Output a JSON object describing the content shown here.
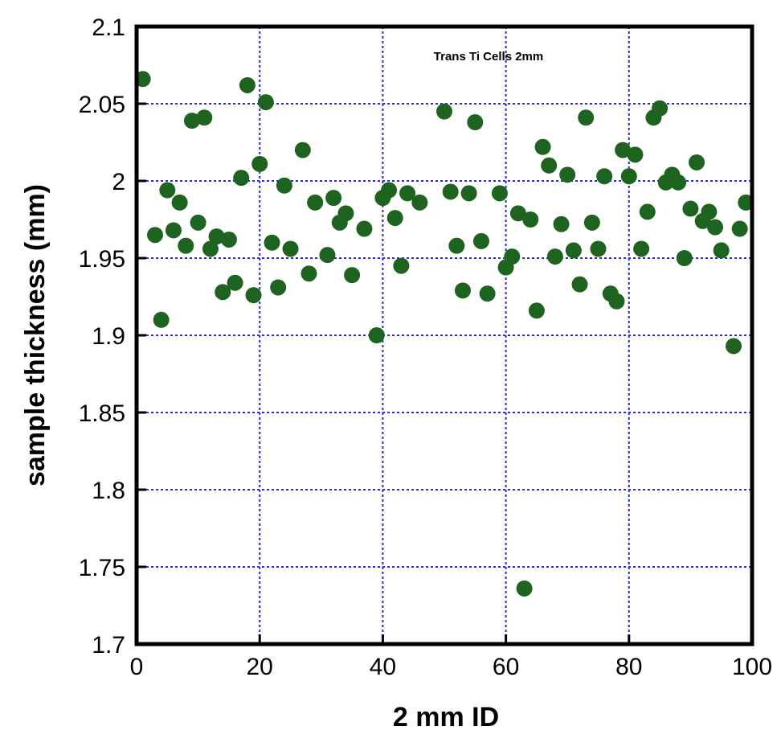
{
  "chart_data": {
    "type": "scatter",
    "title": "Trans  Ti Cells 2mm",
    "xlabel": "2 mm ID",
    "ylabel": "sample thickness (mm)",
    "xlim": [
      0,
      100
    ],
    "ylim": [
      1.7,
      2.1
    ],
    "x_ticks": [
      "0",
      "20",
      "40",
      "60",
      "80",
      "100"
    ],
    "y_ticks": [
      "1.7",
      "1.75",
      "1.8",
      "1.85",
      "1.9",
      "1.95",
      "2",
      "2.05",
      "2.1"
    ],
    "grid": true,
    "colors": {
      "marker": "#1e6420",
      "grid": "#2b2bd6",
      "axis": "#000000"
    },
    "points": [
      {
        "x": 1,
        "y": 2.066
      },
      {
        "x": 3,
        "y": 1.965
      },
      {
        "x": 4,
        "y": 1.91
      },
      {
        "x": 5,
        "y": 1.994
      },
      {
        "x": 6,
        "y": 1.968
      },
      {
        "x": 7,
        "y": 1.986
      },
      {
        "x": 8,
        "y": 1.958
      },
      {
        "x": 9,
        "y": 2.039
      },
      {
        "x": 10,
        "y": 1.973
      },
      {
        "x": 11,
        "y": 2.041
      },
      {
        "x": 12,
        "y": 1.956
      },
      {
        "x": 13,
        "y": 1.964
      },
      {
        "x": 14,
        "y": 1.928
      },
      {
        "x": 15,
        "y": 1.962
      },
      {
        "x": 16,
        "y": 1.934
      },
      {
        "x": 17,
        "y": 2.002
      },
      {
        "x": 18,
        "y": 2.062
      },
      {
        "x": 19,
        "y": 1.926
      },
      {
        "x": 20,
        "y": 2.011
      },
      {
        "x": 21,
        "y": 2.051
      },
      {
        "x": 22,
        "y": 1.96
      },
      {
        "x": 23,
        "y": 1.931
      },
      {
        "x": 24,
        "y": 1.997
      },
      {
        "x": 25,
        "y": 1.956
      },
      {
        "x": 27,
        "y": 2.02
      },
      {
        "x": 28,
        "y": 1.94
      },
      {
        "x": 29,
        "y": 1.986
      },
      {
        "x": 31,
        "y": 1.952
      },
      {
        "x": 32,
        "y": 1.989
      },
      {
        "x": 33,
        "y": 1.973
      },
      {
        "x": 34,
        "y": 1.979
      },
      {
        "x": 35,
        "y": 1.939
      },
      {
        "x": 37,
        "y": 1.969
      },
      {
        "x": 39,
        "y": 1.9
      },
      {
        "x": 40,
        "y": 1.989
      },
      {
        "x": 41,
        "y": 1.994
      },
      {
        "x": 42,
        "y": 1.976
      },
      {
        "x": 43,
        "y": 1.945
      },
      {
        "x": 44,
        "y": 1.992
      },
      {
        "x": 46,
        "y": 1.986
      },
      {
        "x": 50,
        "y": 2.045
      },
      {
        "x": 51,
        "y": 1.993
      },
      {
        "x": 52,
        "y": 1.958
      },
      {
        "x": 53,
        "y": 1.929
      },
      {
        "x": 54,
        "y": 1.992
      },
      {
        "x": 55,
        "y": 2.038
      },
      {
        "x": 56,
        "y": 1.961
      },
      {
        "x": 57,
        "y": 1.927
      },
      {
        "x": 59,
        "y": 1.992
      },
      {
        "x": 60,
        "y": 1.944
      },
      {
        "x": 61,
        "y": 1.951
      },
      {
        "x": 62,
        "y": 1.979
      },
      {
        "x": 63,
        "y": 1.736
      },
      {
        "x": 64,
        "y": 1.975
      },
      {
        "x": 65,
        "y": 1.916
      },
      {
        "x": 66,
        "y": 2.022
      },
      {
        "x": 67,
        "y": 2.01
      },
      {
        "x": 68,
        "y": 1.951
      },
      {
        "x": 69,
        "y": 1.972
      },
      {
        "x": 70,
        "y": 2.004
      },
      {
        "x": 71,
        "y": 1.955
      },
      {
        "x": 72,
        "y": 1.933
      },
      {
        "x": 73,
        "y": 2.041
      },
      {
        "x": 74,
        "y": 1.973
      },
      {
        "x": 75,
        "y": 1.956
      },
      {
        "x": 76,
        "y": 2.003
      },
      {
        "x": 77,
        "y": 1.927
      },
      {
        "x": 78,
        "y": 1.922
      },
      {
        "x": 79,
        "y": 2.02
      },
      {
        "x": 80,
        "y": 2.003
      },
      {
        "x": 81,
        "y": 2.017
      },
      {
        "x": 82,
        "y": 1.956
      },
      {
        "x": 83,
        "y": 1.98
      },
      {
        "x": 84,
        "y": 2.041
      },
      {
        "x": 85,
        "y": 2.047
      },
      {
        "x": 86,
        "y": 1.999
      },
      {
        "x": 87,
        "y": 2.004
      },
      {
        "x": 88,
        "y": 1.999
      },
      {
        "x": 89,
        "y": 1.95
      },
      {
        "x": 90,
        "y": 1.982
      },
      {
        "x": 91,
        "y": 2.012
      },
      {
        "x": 92,
        "y": 1.974
      },
      {
        "x": 93,
        "y": 1.98
      },
      {
        "x": 94,
        "y": 1.97
      },
      {
        "x": 95,
        "y": 1.955
      },
      {
        "x": 97,
        "y": 1.893
      },
      {
        "x": 98,
        "y": 1.969
      },
      {
        "x": 99,
        "y": 1.986
      }
    ]
  }
}
